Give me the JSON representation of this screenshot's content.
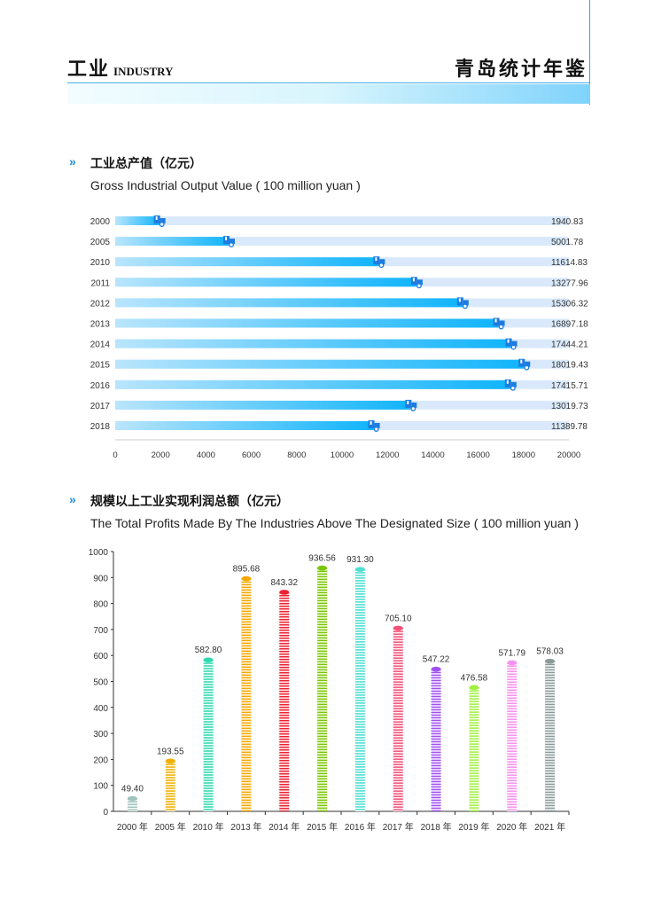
{
  "header": {
    "section_cn": "工业",
    "section_en": "INDUSTRY",
    "book_title": "青岛统计年鉴"
  },
  "colors": {
    "accent": "#1a8fe0",
    "bar_track": "#d9e9fb",
    "bar_fill_start": "#b9e5fc",
    "bar_fill_end": "#10b4fb",
    "truck": "#1c7ce0"
  },
  "sections": [
    {
      "icon": "double-chevron-right-icon",
      "title": "工业总产值（亿元）",
      "subtitle": "Gross Industrial Output Value ( 100 million yuan )"
    },
    {
      "icon": "double-chevron-right-icon",
      "title": "规模以上工业实现利润总额（亿元）",
      "subtitle": "The Total Profits Made By The Industries Above The Designated Size ( 100 million yuan )"
    }
  ],
  "chart_data": [
    {
      "type": "bar",
      "orientation": "horizontal",
      "categories": [
        "2000",
        "2005",
        "2010",
        "2011",
        "2012",
        "2013",
        "2014",
        "2015",
        "2016",
        "2017",
        "2018"
      ],
      "values": [
        1940.83,
        5001.78,
        11614.83,
        13277.96,
        15306.32,
        16897.18,
        17444.21,
        18019.43,
        17415.71,
        13019.73,
        11389.78
      ],
      "value_labels": [
        "1940.83",
        "5001.78",
        "11614.83",
        "13277.96",
        "15306.32",
        "16897.18",
        "17444.21",
        "18019.43",
        "17415.71",
        "13019.73",
        "11389.78"
      ],
      "xlim": [
        0,
        20000
      ],
      "xticks": [
        "0",
        "2000",
        "4000",
        "6000",
        "8000",
        "10000",
        "12000",
        "14000",
        "16000",
        "18000",
        "20000"
      ],
      "marker": "truck-icon"
    },
    {
      "type": "bar",
      "orientation": "vertical",
      "categories": [
        "2000 年",
        "2005 年",
        "2010 年",
        "2013 年",
        "2014 年",
        "2015 年",
        "2016 年",
        "2017 年",
        "2018 年",
        "2019 年",
        "2020 年",
        "2021 年"
      ],
      "values": [
        49.4,
        193.55,
        582.8,
        895.68,
        843.32,
        936.56,
        931.3,
        705.1,
        547.22,
        476.58,
        571.79,
        578.03
      ],
      "value_labels": [
        "49.40",
        "193.55",
        "582.80",
        "895.68",
        "843.32",
        "936.56",
        "931.30",
        "705.10",
        "547.22",
        "476.58",
        "571.79",
        "578.03"
      ],
      "colors": [
        "#9fc4bd",
        "#f0b000",
        "#2fd8b0",
        "#f5a800",
        "#ee2030",
        "#78c800",
        "#50ddd0",
        "#f55078",
        "#a050f0",
        "#a0f040",
        "#f890f0",
        "#8a9a98"
      ],
      "ylim": [
        0,
        1000
      ],
      "yticks": [
        "0",
        "100",
        "200",
        "300",
        "400",
        "500",
        "600",
        "700",
        "800",
        "900",
        "1000"
      ]
    }
  ]
}
